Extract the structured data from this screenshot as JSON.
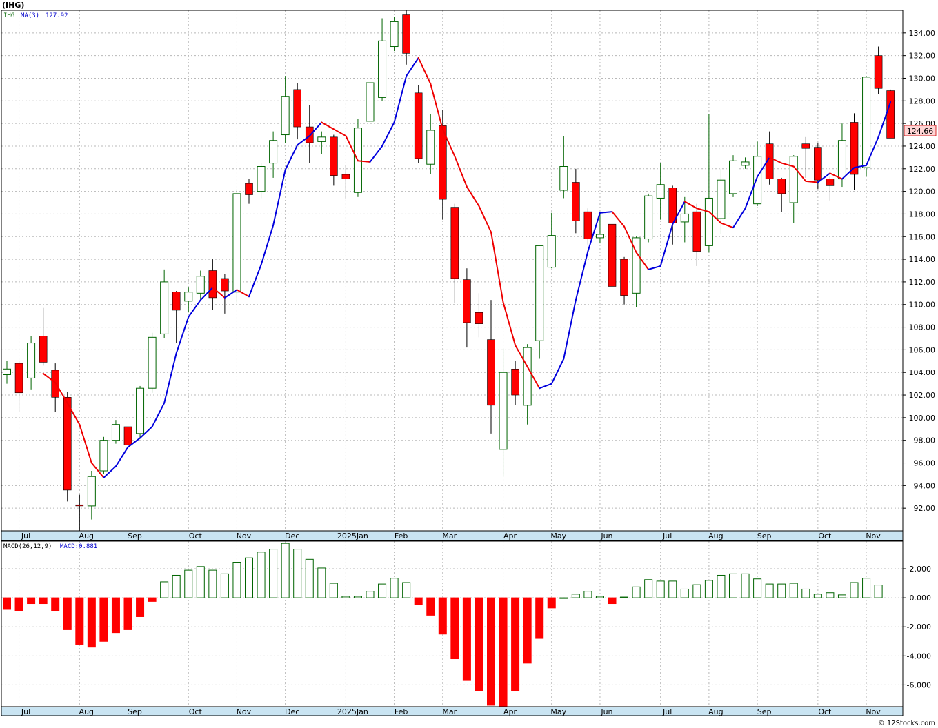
{
  "header": {
    "symbol_title": "(IHG)",
    "copyright": "© 12Stocks.com"
  },
  "price_panel": {
    "legend_symbol": "IHG",
    "legend_ma_label": "MA(3)",
    "legend_ma_value": "127.92",
    "last_price_label": "124.66"
  },
  "macd_panel": {
    "legend_macd_label": "MACD(26,12,9)",
    "legend_macd_value": "MACD:0.881"
  },
  "colors": {
    "up": "#006400",
    "down": "#ff0000",
    "ma_up": "#0000dd",
    "ma_down": "#ee0000",
    "axis_band": "#c9e4f2",
    "grid": "#b8b8b8",
    "last_price_bg": "#ffd5d5"
  },
  "chart_data": [
    {
      "type": "candlestick",
      "ylim": [
        90,
        136
      ],
      "y_ticks": [
        "92.00",
        "94.00",
        "96.00",
        "98.00",
        "100.00",
        "102.00",
        "104.00",
        "106.00",
        "108.00",
        "110.00",
        "112.00",
        "114.00",
        "116.00",
        "118.00",
        "120.00",
        "122.00",
        "124.00",
        "126.00",
        "128.00",
        "130.00",
        "132.00",
        "134.00"
      ],
      "x_labels": [
        "Jul",
        "Aug",
        "Sep",
        "Oct",
        "Nov",
        "Dec",
        "2025Jan",
        "Feb",
        "Mar",
        "Apr",
        "May",
        "Jun",
        "Jul",
        "Aug",
        "Sep",
        "Oct",
        "Nov"
      ],
      "x_label_week": [
        1,
        6,
        10,
        15,
        19,
        23,
        28,
        32,
        36,
        41,
        45,
        49,
        54,
        58,
        62,
        67,
        71
      ],
      "candles": [
        {
          "o": 103.8,
          "h": 105.0,
          "l": 103.0,
          "c": 104.3
        },
        {
          "o": 104.8,
          "h": 105.0,
          "l": 100.5,
          "c": 102.2
        },
        {
          "o": 103.5,
          "h": 107.2,
          "l": 102.5,
          "c": 106.6
        },
        {
          "o": 107.2,
          "h": 109.7,
          "l": 104.6,
          "c": 104.9
        },
        {
          "o": 104.2,
          "h": 104.8,
          "l": 100.5,
          "c": 101.8
        },
        {
          "o": 101.8,
          "h": 102.3,
          "l": 92.6,
          "c": 93.6
        },
        {
          "o": 92.3,
          "h": 93.2,
          "l": 90.0,
          "c": 92.2
        },
        {
          "o": 92.2,
          "h": 95.3,
          "l": 91.0,
          "c": 94.8
        },
        {
          "o": 95.3,
          "h": 98.3,
          "l": 95.0,
          "c": 98.0
        },
        {
          "o": 98.0,
          "h": 99.8,
          "l": 97.7,
          "c": 99.4
        },
        {
          "o": 99.2,
          "h": 99.9,
          "l": 97.0,
          "c": 97.6
        },
        {
          "o": 98.6,
          "h": 102.8,
          "l": 98.2,
          "c": 102.6
        },
        {
          "o": 102.6,
          "h": 107.5,
          "l": 102.2,
          "c": 107.1
        },
        {
          "o": 107.4,
          "h": 113.1,
          "l": 107.0,
          "c": 112.0
        },
        {
          "o": 111.1,
          "h": 111.2,
          "l": 106.6,
          "c": 109.5
        },
        {
          "o": 110.3,
          "h": 111.5,
          "l": 109.3,
          "c": 111.1
        },
        {
          "o": 111.0,
          "h": 113.0,
          "l": 110.5,
          "c": 112.5
        },
        {
          "o": 113.0,
          "h": 114.0,
          "l": 109.5,
          "c": 110.6
        },
        {
          "o": 112.3,
          "h": 112.7,
          "l": 109.2,
          "c": 111.2
        },
        {
          "o": 111.1,
          "h": 120.2,
          "l": 110.2,
          "c": 119.8
        },
        {
          "o": 120.7,
          "h": 121.1,
          "l": 118.9,
          "c": 119.7
        },
        {
          "o": 120.0,
          "h": 122.5,
          "l": 119.4,
          "c": 122.2
        },
        {
          "o": 122.5,
          "h": 125.3,
          "l": 121.2,
          "c": 124.5
        },
        {
          "o": 125.0,
          "h": 130.2,
          "l": 124.3,
          "c": 128.4
        },
        {
          "o": 129.0,
          "h": 129.6,
          "l": 124.6,
          "c": 125.7
        },
        {
          "o": 125.7,
          "h": 127.6,
          "l": 122.5,
          "c": 124.3
        },
        {
          "o": 124.4,
          "h": 125.3,
          "l": 123.3,
          "c": 124.8
        },
        {
          "o": 124.8,
          "h": 125.0,
          "l": 120.5,
          "c": 121.4
        },
        {
          "o": 121.5,
          "h": 122.3,
          "l": 119.3,
          "c": 121.1
        },
        {
          "o": 119.9,
          "h": 126.4,
          "l": 119.5,
          "c": 125.6
        },
        {
          "o": 126.2,
          "h": 130.5,
          "l": 126.0,
          "c": 129.6
        },
        {
          "o": 128.3,
          "h": 135.3,
          "l": 128.0,
          "c": 133.3
        },
        {
          "o": 132.8,
          "h": 135.4,
          "l": 132.4,
          "c": 135.0
        },
        {
          "o": 135.6,
          "h": 136.0,
          "l": 131.2,
          "c": 132.2
        },
        {
          "o": 128.7,
          "h": 129.4,
          "l": 122.5,
          "c": 122.9
        },
        {
          "o": 122.4,
          "h": 126.8,
          "l": 121.5,
          "c": 125.4
        },
        {
          "o": 125.8,
          "h": 127.2,
          "l": 117.5,
          "c": 119.3
        },
        {
          "o": 118.6,
          "h": 118.9,
          "l": 110.1,
          "c": 112.3
        },
        {
          "o": 112.2,
          "h": 113.2,
          "l": 106.2,
          "c": 108.4
        },
        {
          "o": 109.3,
          "h": 111.0,
          "l": 107.1,
          "c": 108.3
        },
        {
          "o": 106.9,
          "h": 110.4,
          "l": 98.6,
          "c": 101.1
        },
        {
          "o": 97.2,
          "h": 106.1,
          "l": 94.8,
          "c": 104.0
        },
        {
          "o": 104.3,
          "h": 105.0,
          "l": 101.1,
          "c": 102.0
        },
        {
          "o": 101.1,
          "h": 106.5,
          "l": 99.4,
          "c": 106.2
        },
        {
          "o": 106.8,
          "h": 115.2,
          "l": 105.2,
          "c": 115.2
        },
        {
          "o": 113.3,
          "h": 118.1,
          "l": 113.2,
          "c": 116.1
        },
        {
          "o": 120.1,
          "h": 124.9,
          "l": 119.4,
          "c": 122.2
        },
        {
          "o": 120.8,
          "h": 122.0,
          "l": 116.3,
          "c": 117.4
        },
        {
          "o": 118.2,
          "h": 118.5,
          "l": 115.3,
          "c": 115.8
        },
        {
          "o": 115.9,
          "h": 118.0,
          "l": 115.4,
          "c": 116.2
        },
        {
          "o": 117.1,
          "h": 117.4,
          "l": 111.4,
          "c": 111.6
        },
        {
          "o": 114.0,
          "h": 114.2,
          "l": 110.0,
          "c": 110.8
        },
        {
          "o": 111.0,
          "h": 116.0,
          "l": 109.8,
          "c": 115.9
        },
        {
          "o": 115.8,
          "h": 119.8,
          "l": 115.5,
          "c": 119.6
        },
        {
          "o": 119.4,
          "h": 122.5,
          "l": 117.5,
          "c": 120.6
        },
        {
          "o": 120.3,
          "h": 120.5,
          "l": 115.3,
          "c": 117.2
        },
        {
          "o": 117.3,
          "h": 119.5,
          "l": 115.5,
          "c": 118.0
        },
        {
          "o": 118.2,
          "h": 118.9,
          "l": 113.4,
          "c": 114.7
        },
        {
          "o": 115.2,
          "h": 126.8,
          "l": 114.6,
          "c": 119.4
        },
        {
          "o": 117.6,
          "h": 122.0,
          "l": 116.2,
          "c": 121.0
        },
        {
          "o": 119.8,
          "h": 123.2,
          "l": 119.5,
          "c": 122.7
        },
        {
          "o": 122.3,
          "h": 123.0,
          "l": 122.0,
          "c": 122.6
        },
        {
          "o": 118.9,
          "h": 124.4,
          "l": 118.7,
          "c": 123.1
        },
        {
          "o": 124.2,
          "h": 125.3,
          "l": 120.6,
          "c": 121.1
        },
        {
          "o": 121.1,
          "h": 121.2,
          "l": 118.2,
          "c": 119.8
        },
        {
          "o": 119.0,
          "h": 123.2,
          "l": 117.2,
          "c": 123.1
        },
        {
          "o": 124.2,
          "h": 124.8,
          "l": 121.2,
          "c": 123.8
        },
        {
          "o": 123.9,
          "h": 124.3,
          "l": 120.2,
          "c": 121.0
        },
        {
          "o": 121.1,
          "h": 121.3,
          "l": 119.2,
          "c": 120.5
        },
        {
          "o": 121.1,
          "h": 126.0,
          "l": 120.4,
          "c": 124.5
        },
        {
          "o": 126.1,
          "h": 126.9,
          "l": 120.1,
          "c": 121.5
        },
        {
          "o": 122.1,
          "h": 130.2,
          "l": 121.3,
          "c": 130.1
        },
        {
          "o": 132.0,
          "h": 132.8,
          "l": 128.6,
          "c": 129.1
        },
        {
          "o": 128.9,
          "h": 129.0,
          "l": 124.7,
          "c": 124.7
        }
      ],
      "ma3": [
        null,
        null,
        null,
        103.9,
        103.1,
        101.3,
        99.4,
        96.0,
        94.7,
        95.7,
        97.4,
        98.2,
        99.2,
        101.3,
        105.7,
        108.9,
        110.4,
        111.5,
        110.6,
        111.3,
        110.7,
        113.5,
        117.0,
        121.9,
        124.1,
        124.9,
        126.1,
        125.5,
        124.9,
        122.7,
        122.6,
        124.0,
        126.1,
        130.2,
        131.8,
        129.5,
        125.5,
        123.1,
        120.4,
        118.7,
        116.4,
        110.2,
        106.4,
        104.5,
        102.6,
        103.0,
        105.2,
        110.4,
        114.7,
        118.1,
        118.2,
        116.9,
        114.6,
        113.1,
        113.4,
        117.1,
        119.1,
        118.5,
        118.2,
        117.2,
        116.8,
        118.5,
        121.3,
        123.0,
        122.5,
        122.2,
        120.9,
        120.8,
        121.6,
        121.1,
        122.1,
        122.3,
        124.8,
        127.9
      ]
    },
    {
      "type": "bar",
      "series_name": "MACD(26,12,9)",
      "ylim": [
        -7.5,
        3.9
      ],
      "y_ticks": [
        "2.000",
        "0.000",
        "-2.000",
        "-4.000",
        "-6.000"
      ],
      "x_labels": [
        "Jul",
        "Aug",
        "Sep",
        "Oct",
        "Nov",
        "Dec",
        "2025Jan",
        "Feb",
        "Mar",
        "Apr",
        "May",
        "Jun",
        "Jul",
        "Aug",
        "Sep",
        "Oct",
        "Nov"
      ],
      "values": [
        -0.8,
        -0.9,
        -0.4,
        -0.4,
        -0.9,
        -2.2,
        -3.2,
        -3.4,
        -3.0,
        -2.4,
        -2.2,
        -1.3,
        -0.25,
        1.1,
        1.55,
        1.9,
        2.15,
        1.9,
        1.65,
        2.45,
        2.75,
        3.15,
        3.35,
        3.75,
        3.35,
        2.65,
        2.05,
        1.0,
        0.1,
        0.1,
        0.45,
        0.95,
        1.35,
        1.05,
        -0.45,
        -1.2,
        -2.5,
        -4.2,
        -5.7,
        -6.4,
        -7.4,
        -7.6,
        -6.4,
        -4.5,
        -2.8,
        -0.7,
        0.0,
        0.25,
        0.45,
        0.1,
        -0.4,
        0.05,
        0.75,
        1.25,
        1.15,
        1.15,
        0.6,
        0.9,
        1.2,
        1.55,
        1.65,
        1.65,
        1.3,
        0.95,
        0.95,
        1.0,
        0.6,
        0.25,
        0.35,
        0.2,
        1.05,
        1.35,
        0.88
      ]
    }
  ]
}
